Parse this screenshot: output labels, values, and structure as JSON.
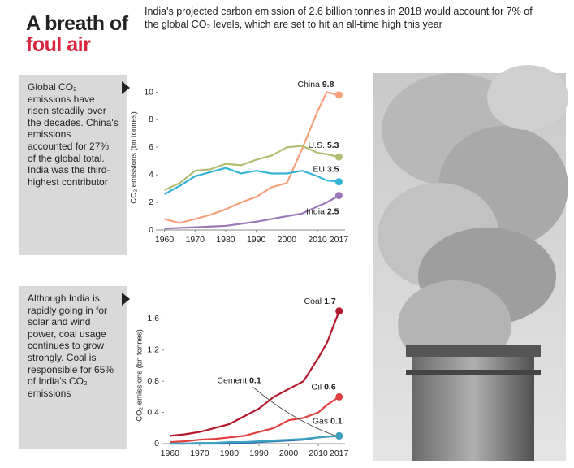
{
  "header": {
    "title_line1": "A breath of",
    "title_line2": "foul air",
    "subtitle": "India's projected carbon emission of 2.6 billion tonnes in 2018 would account for 7% of the global CO₂ levels, which are set to hit an all-time high this year"
  },
  "notes": [
    "Global CO₂ emissions have risen steadily over the decades. China's emissions accounted for 27% of the global total. India was the third-highest contributor",
    "Although India is rapidly going in for solar and wind power, coal usage continues to grow strongly. Coal is responsible for 65% of India's CO₂ emissions"
  ],
  "chart_data": [
    {
      "type": "line",
      "y_label": "CO₂ emissions (bn tonnes)",
      "x": [
        1960,
        1965,
        1970,
        1975,
        1980,
        1985,
        1990,
        1995,
        2000,
        2005,
        2010,
        2013,
        2017
      ],
      "xlim": [
        1958,
        2019
      ],
      "xticks": [
        1960,
        1970,
        1980,
        1990,
        2000,
        2010,
        2017
      ],
      "ylim": [
        0,
        10.5
      ],
      "yticks": [
        0,
        2,
        4,
        6,
        8,
        10
      ],
      "series": [
        {
          "name": "China",
          "color": "#f4a07a",
          "values": [
            0.8,
            0.5,
            0.8,
            1.1,
            1.5,
            2.0,
            2.4,
            3.1,
            3.4,
            5.9,
            8.6,
            10.0,
            9.8
          ]
        },
        {
          "name": "U.S.",
          "color": "#b3bd74",
          "values": [
            2.9,
            3.4,
            4.3,
            4.4,
            4.8,
            4.7,
            5.1,
            5.4,
            6.0,
            6.1,
            5.6,
            5.5,
            5.3
          ]
        },
        {
          "name": "EU",
          "color": "#36b4d8",
          "values": [
            2.6,
            3.2,
            3.9,
            4.2,
            4.5,
            4.1,
            4.3,
            4.1,
            4.1,
            4.3,
            3.9,
            3.6,
            3.5
          ]
        },
        {
          "name": "India",
          "color": "#9a78b8",
          "values": [
            0.1,
            0.15,
            0.2,
            0.25,
            0.3,
            0.45,
            0.6,
            0.8,
            1.0,
            1.2,
            1.7,
            2.0,
            2.5
          ]
        }
      ]
    },
    {
      "type": "line",
      "y_label": "CO₂ emissions (bn tonnes)",
      "x": [
        1960,
        1965,
        1970,
        1975,
        1980,
        1985,
        1990,
        1995,
        2000,
        2005,
        2010,
        2013,
        2017
      ],
      "xlim": [
        1958,
        2019
      ],
      "xticks": [
        1960,
        1970,
        1980,
        1990,
        2000,
        2010,
        2017
      ],
      "ylim": [
        0,
        1.75
      ],
      "yticks": [
        0,
        0.4,
        0.8,
        1.2,
        1.6
      ],
      "series": [
        {
          "name": "Coal",
          "color": "#b5172b",
          "values": [
            0.1,
            0.12,
            0.15,
            0.2,
            0.25,
            0.35,
            0.45,
            0.6,
            0.7,
            0.8,
            1.1,
            1.3,
            1.7
          ]
        },
        {
          "name": "Oil",
          "color": "#e0403f",
          "values": [
            0.02,
            0.03,
            0.05,
            0.06,
            0.08,
            0.1,
            0.15,
            0.2,
            0.3,
            0.33,
            0.4,
            0.5,
            0.6
          ]
        },
        {
          "name": "Gas",
          "color": "#2a6fb5",
          "values": [
            0,
            0,
            0,
            0,
            0,
            0.01,
            0.02,
            0.03,
            0.04,
            0.05,
            0.08,
            0.09,
            0.1
          ]
        },
        {
          "name": "Cement",
          "color": "#3fa0c0",
          "values": [
            0,
            0,
            0.01,
            0.01,
            0.02,
            0.02,
            0.03,
            0.04,
            0.05,
            0.06,
            0.08,
            0.09,
            0.1
          ]
        }
      ]
    }
  ]
}
